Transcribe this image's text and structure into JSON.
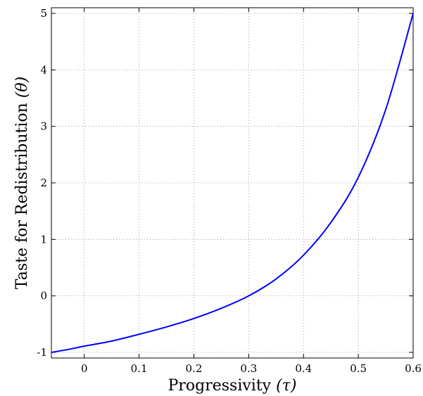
{
  "chart_data": {
    "type": "line",
    "xlabel_text": "Progressivity ",
    "xlabel_symbol": "(τ)",
    "ylabel_text": "Taste for Redistribution ",
    "ylabel_symbol": "(θ)",
    "xlim": [
      -0.06,
      0.6
    ],
    "ylim": [
      -1.1,
      5.1
    ],
    "xticks": [
      0,
      0.1,
      0.2,
      0.3,
      0.4,
      0.5,
      0.6
    ],
    "xtick_labels": [
      "0",
      "0.1",
      "0.2",
      "0.3",
      "0.4",
      "0.5",
      "0.6"
    ],
    "yticks": [
      -1,
      0,
      1,
      2,
      3,
      4,
      5
    ],
    "ytick_labels": [
      "-1",
      "0",
      "1",
      "2",
      "3",
      "4",
      "5"
    ],
    "grid": true,
    "series": [
      {
        "color": "#0000ff",
        "x": [
          -0.06,
          -0.03,
          0,
          0.05,
          0.1,
          0.15,
          0.2,
          0.25,
          0.3,
          0.35,
          0.4,
          0.45,
          0.5,
          0.55,
          0.6
        ],
        "y": [
          -1.0,
          -0.95,
          -0.89,
          -0.8,
          -0.68,
          -0.55,
          -0.4,
          -0.22,
          0.0,
          0.3,
          0.72,
          1.3,
          2.1,
          3.3,
          5.0
        ]
      }
    ]
  }
}
